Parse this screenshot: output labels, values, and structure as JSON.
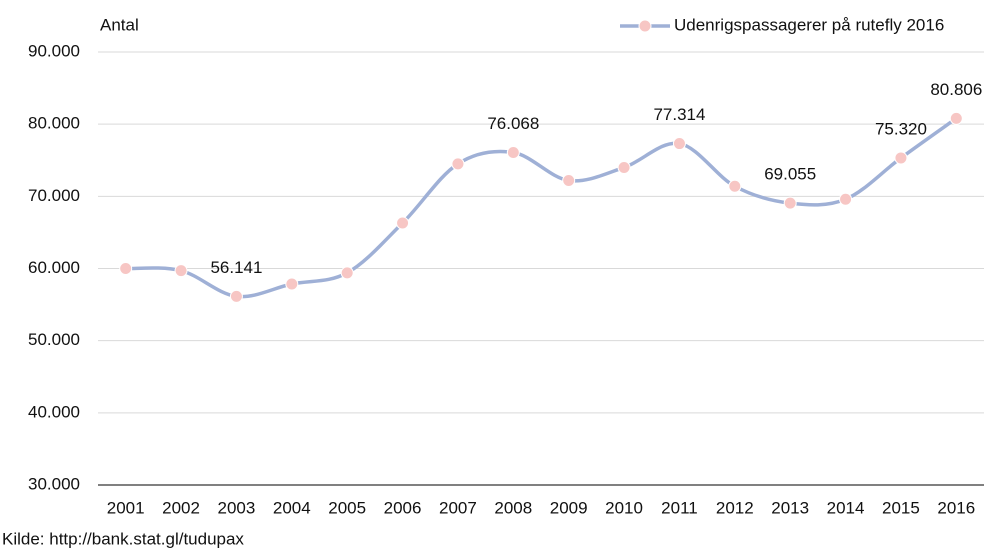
{
  "chart_data": {
    "type": "line",
    "y_label": "Antal",
    "source": "Kilde: http://bank.stat.gl/tudupax",
    "categories": [
      "2001",
      "2002",
      "2003",
      "2004",
      "2005",
      "2006",
      "2007",
      "2008",
      "2009",
      "2010",
      "2011",
      "2012",
      "2013",
      "2014",
      "2015",
      "2016"
    ],
    "series": [
      {
        "name": "Udenrigspassagerer på rutefly 2016",
        "color": "#9fb0d6",
        "marker_color": "#f7c6c4",
        "values": [
          60000,
          59700,
          56141,
          57850,
          59400,
          66300,
          74500,
          76068,
          72200,
          74000,
          77314,
          71400,
          69055,
          69600,
          75320,
          80806
        ],
        "value_labels": [
          null,
          null,
          "56.141",
          null,
          null,
          null,
          null,
          "76.068",
          null,
          null,
          "77.314",
          null,
          "69.055",
          null,
          "75.320",
          "80.806"
        ]
      }
    ],
    "ylim": [
      30000,
      90000
    ],
    "yticks": [
      {
        "value": 30000,
        "label": "30.000"
      },
      {
        "value": 40000,
        "label": "40.000"
      },
      {
        "value": 50000,
        "label": "50.000"
      },
      {
        "value": 60000,
        "label": "60.000"
      },
      {
        "value": 70000,
        "label": "70.000"
      },
      {
        "value": 80000,
        "label": "80.000"
      },
      {
        "value": 90000,
        "label": "90.000"
      }
    ],
    "grid": true,
    "legend": "top-right"
  }
}
